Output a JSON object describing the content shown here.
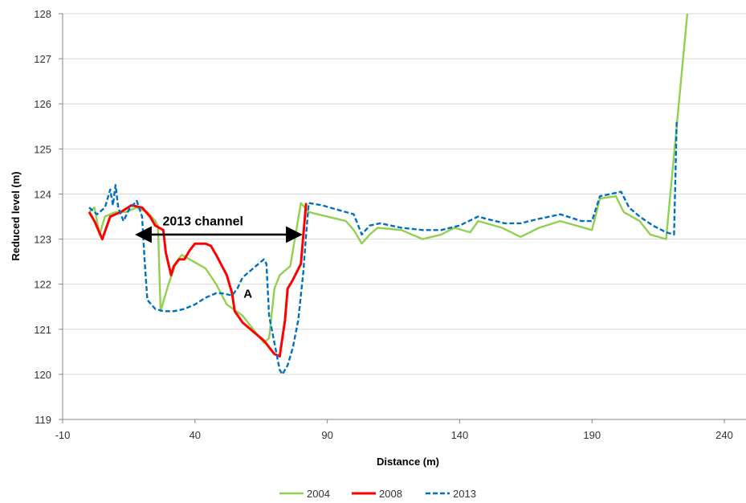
{
  "chart_data": {
    "type": "line",
    "title": "",
    "xlabel": "Distance (m)",
    "ylabel": "Reduced level (m)",
    "xlim": [
      -10,
      250
    ],
    "ylim": [
      119,
      128
    ],
    "x_ticks": [
      -10,
      40,
      90,
      140,
      190,
      240
    ],
    "y_ticks": [
      119,
      120,
      121,
      122,
      123,
      124,
      125,
      126,
      127,
      128
    ],
    "grid": "horizontal major gridlines",
    "legend_position": "bottom-center",
    "series": [
      {
        "name": "2004",
        "color": "#92d050",
        "dash": "solid",
        "points": [
          [
            0,
            123.6
          ],
          [
            2,
            123.7
          ],
          [
            4,
            123.1
          ],
          [
            6,
            123.5
          ],
          [
            10,
            123.6
          ],
          [
            14,
            123.6
          ],
          [
            18,
            123.7
          ],
          [
            22,
            123.6
          ],
          [
            25,
            123.4
          ],
          [
            26,
            123.3
          ],
          [
            27,
            121.4
          ],
          [
            30,
            122
          ],
          [
            33,
            122.5
          ],
          [
            35,
            122.65
          ],
          [
            38,
            122.55
          ],
          [
            44,
            122.35
          ],
          [
            48,
            122
          ],
          [
            52,
            121.55
          ],
          [
            58,
            121.3
          ],
          [
            62,
            121
          ],
          [
            66,
            120.7
          ],
          [
            68,
            120.8
          ],
          [
            70,
            121.9
          ],
          [
            72,
            122.2
          ],
          [
            76,
            122.4
          ],
          [
            80,
            123.8
          ],
          [
            83,
            123.6
          ],
          [
            97,
            123.4
          ],
          [
            100,
            123.2
          ],
          [
            103,
            122.9
          ],
          [
            106,
            123.1
          ],
          [
            109,
            123.25
          ],
          [
            118,
            123.2
          ],
          [
            126,
            123
          ],
          [
            133,
            123.1
          ],
          [
            138,
            123.25
          ],
          [
            144,
            123.15
          ],
          [
            147,
            123.4
          ],
          [
            150,
            123.35
          ],
          [
            156,
            123.25
          ],
          [
            163,
            123.05
          ],
          [
            170,
            123.25
          ],
          [
            178,
            123.4
          ],
          [
            190,
            123.2
          ],
          [
            193,
            123.9
          ],
          [
            199,
            123.95
          ],
          [
            202,
            123.6
          ],
          [
            208,
            123.4
          ],
          [
            212,
            123.1
          ],
          [
            218,
            123
          ],
          [
            226,
            128
          ]
        ]
      },
      {
        "name": "2008",
        "color": "#ff0000",
        "dash": "solid",
        "points": [
          [
            0,
            123.6
          ],
          [
            2,
            123.4
          ],
          [
            5,
            123
          ],
          [
            8,
            123.5
          ],
          [
            12,
            123.6
          ],
          [
            16,
            123.75
          ],
          [
            20,
            123.7
          ],
          [
            23,
            123.5
          ],
          [
            25,
            123.3
          ],
          [
            28,
            123.2
          ],
          [
            29,
            122.7
          ],
          [
            31,
            122.2
          ],
          [
            32,
            122.4
          ],
          [
            34,
            122.55
          ],
          [
            36,
            122.55
          ],
          [
            38,
            122.75
          ],
          [
            40,
            122.9
          ],
          [
            44,
            122.9
          ],
          [
            46,
            122.85
          ],
          [
            48,
            122.65
          ],
          [
            52,
            122.2
          ],
          [
            54,
            121.8
          ],
          [
            55,
            121.4
          ],
          [
            58,
            121.15
          ],
          [
            62,
            120.95
          ],
          [
            66,
            120.75
          ],
          [
            68,
            120.6
          ],
          [
            70,
            120.45
          ],
          [
            72,
            120.4
          ],
          [
            74,
            121.2
          ],
          [
            75,
            121.9
          ],
          [
            77,
            122.1
          ],
          [
            80,
            122.45
          ],
          [
            82,
            123.8
          ]
        ]
      },
      {
        "name": "2013",
        "color": "#0070c0",
        "dash": "dashed",
        "points": [
          [
            0,
            123.7
          ],
          [
            3,
            123.55
          ],
          [
            6,
            123.7
          ],
          [
            8,
            124.1
          ],
          [
            9,
            123.75
          ],
          [
            10,
            124.2
          ],
          [
            11,
            123.7
          ],
          [
            13,
            123.4
          ],
          [
            15,
            123.65
          ],
          [
            18,
            123.85
          ],
          [
            20,
            123.5
          ],
          [
            21,
            122.5
          ],
          [
            22,
            121.65
          ],
          [
            25,
            121.45
          ],
          [
            28,
            121.4
          ],
          [
            32,
            121.4
          ],
          [
            36,
            121.45
          ],
          [
            40,
            121.55
          ],
          [
            44,
            121.7
          ],
          [
            48,
            121.8
          ],
          [
            50,
            121.8
          ],
          [
            54,
            121.75
          ],
          [
            56,
            121.9
          ],
          [
            58,
            122.15
          ],
          [
            62,
            122.35
          ],
          [
            66,
            122.55
          ],
          [
            67,
            122.45
          ],
          [
            68,
            121.3
          ],
          [
            70,
            120.7
          ],
          [
            72,
            120.1
          ],
          [
            73,
            120
          ],
          [
            75,
            120.2
          ],
          [
            77,
            120.6
          ],
          [
            79,
            121.2
          ],
          [
            81,
            122.3
          ],
          [
            82,
            123.1
          ],
          [
            83,
            123.8
          ],
          [
            88,
            123.75
          ],
          [
            100,
            123.55
          ],
          [
            103,
            123.1
          ],
          [
            106,
            123.3
          ],
          [
            110,
            123.35
          ],
          [
            118,
            123.25
          ],
          [
            126,
            123.2
          ],
          [
            133,
            123.2
          ],
          [
            140,
            123.3
          ],
          [
            147,
            123.5
          ],
          [
            150,
            123.45
          ],
          [
            157,
            123.35
          ],
          [
            163,
            123.35
          ],
          [
            170,
            123.45
          ],
          [
            178,
            123.55
          ],
          [
            186,
            123.4
          ],
          [
            190,
            123.4
          ],
          [
            193,
            123.95
          ],
          [
            201,
            124.05
          ],
          [
            204,
            123.7
          ],
          [
            208,
            123.5
          ],
          [
            213,
            123.3
          ],
          [
            218,
            123.15
          ],
          [
            221,
            123.1
          ],
          [
            222,
            125.6
          ]
        ]
      }
    ],
    "annotations": [
      {
        "text": "2013 channel",
        "x": 43,
        "y": 123.3,
        "arrow": {
          "from_x": 18,
          "to_x": 80,
          "y": 123.1
        }
      },
      {
        "text": "A",
        "x": 60,
        "y": 121.7
      }
    ]
  }
}
